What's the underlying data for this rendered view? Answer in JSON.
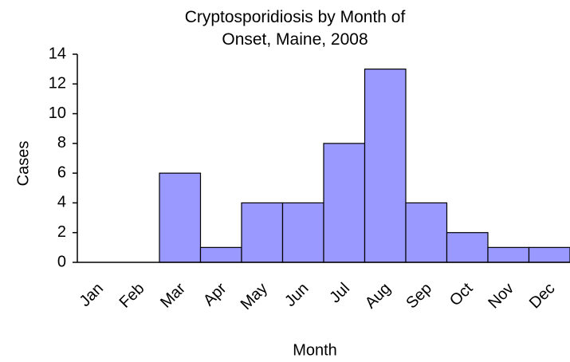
{
  "chart_data": {
    "type": "bar",
    "title": "Cryptosporidiosis by Month of Onset, Maine, 2008",
    "x_label": "Month",
    "y_label": "Cases",
    "categories": [
      "Jan",
      "Feb",
      "Mar",
      "Apr",
      "May",
      "Jun",
      "Jul",
      "Aug",
      "Sep",
      "Oct",
      "Nov",
      "Dec"
    ],
    "values": [
      0,
      0,
      6,
      1,
      4,
      4,
      8,
      13,
      4,
      2,
      1,
      1
    ],
    "color": "#9999ff",
    "ylim": [
      0,
      14
    ],
    "yticks": [
      0,
      2,
      4,
      6,
      8,
      10,
      12,
      14
    ],
    "grid": false
  }
}
